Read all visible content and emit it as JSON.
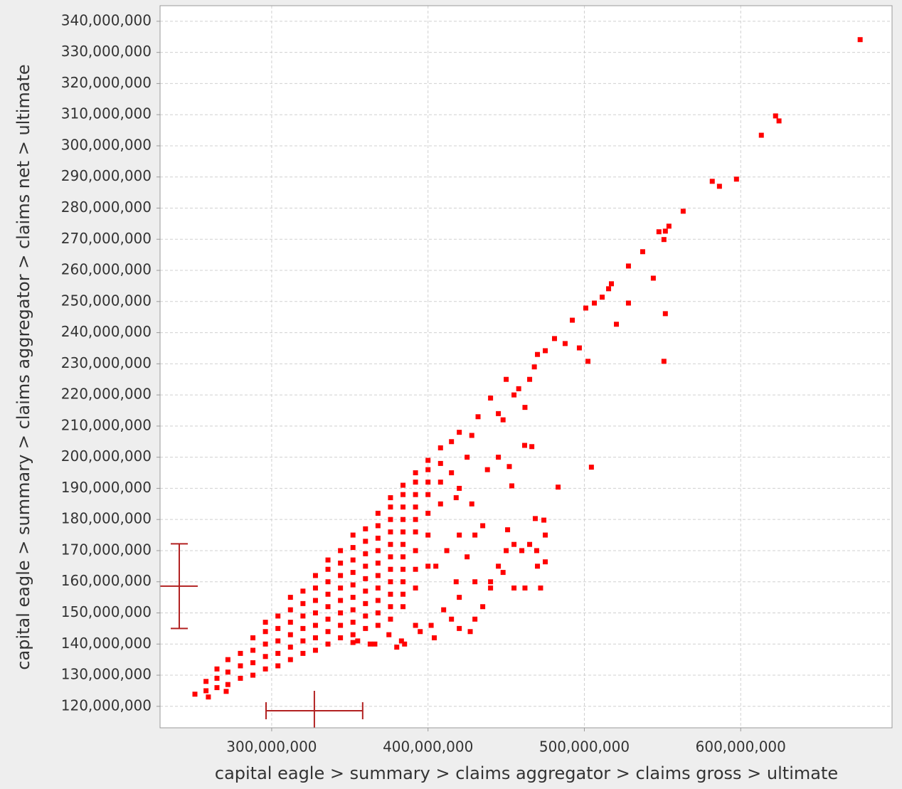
{
  "chart_data": {
    "type": "scatter",
    "x_label": "capital eagle > summary > claims aggregator > claims gross > ultimate",
    "y_label": "capital eagle > summary > claims aggregator > claims net > ultimate",
    "xlim": [
      228600000,
      696800000
    ],
    "ylim": [
      113100000,
      345000000
    ],
    "xticks": [
      {
        "value": 300000000,
        "label": "300,000,000"
      },
      {
        "value": 400000000,
        "label": "400,000,000"
      },
      {
        "value": 500000000,
        "label": "500,000,000"
      },
      {
        "value": 600000000,
        "label": "600,000,000"
      }
    ],
    "yticks": [
      {
        "value": 120000000,
        "label": "120,000,000"
      },
      {
        "value": 130000000,
        "label": "130,000,000"
      },
      {
        "value": 140000000,
        "label": "140,000,000"
      },
      {
        "value": 150000000,
        "label": "150,000,000"
      },
      {
        "value": 160000000,
        "label": "160,000,000"
      },
      {
        "value": 170000000,
        "label": "170,000,000"
      },
      {
        "value": 180000000,
        "label": "180,000,000"
      },
      {
        "value": 190000000,
        "label": "190,000,000"
      },
      {
        "value": 200000000,
        "label": "200,000,000"
      },
      {
        "value": 210000000,
        "label": "210,000,000"
      },
      {
        "value": 220000000,
        "label": "220,000,000"
      },
      {
        "value": 230000000,
        "label": "230,000,000"
      },
      {
        "value": 240000000,
        "label": "240,000,000"
      },
      {
        "value": 250000000,
        "label": "250,000,000"
      },
      {
        "value": 260000000,
        "label": "260,000,000"
      },
      {
        "value": 270000000,
        "label": "270,000,000"
      },
      {
        "value": 280000000,
        "label": "280,000,000"
      },
      {
        "value": 290000000,
        "label": "290,000,000"
      },
      {
        "value": 300000000,
        "label": "300,000,000"
      },
      {
        "value": 310000000,
        "label": "310,000,000"
      },
      {
        "value": 320000000,
        "label": "320,000,000"
      },
      {
        "value": 330000000,
        "label": "330,000,000"
      },
      {
        "value": 340000000,
        "label": "340,000,000"
      }
    ],
    "grid": true,
    "x_error": {
      "value": 327300000,
      "error": 30900000,
      "color": "#b22222"
    },
    "y_error": {
      "value": 158600000,
      "error": 13600000,
      "color": "#b22222"
    },
    "series": [
      {
        "color": "#ff0000",
        "x": [
          258000000,
          258000000,
          265000000,
          265000000,
          265000000,
          272000000,
          272000000,
          272000000,
          280000000,
          280000000,
          280000000,
          288000000,
          288000000,
          288000000,
          288000000,
          296000000,
          296000000,
          296000000,
          296000000,
          296000000,
          304000000,
          304000000,
          304000000,
          304000000,
          304000000,
          312000000,
          312000000,
          312000000,
          312000000,
          312000000,
          312000000,
          320000000,
          320000000,
          320000000,
          320000000,
          320000000,
          320000000,
          328000000,
          328000000,
          328000000,
          328000000,
          328000000,
          328000000,
          328000000,
          336000000,
          336000000,
          336000000,
          336000000,
          336000000,
          336000000,
          336000000,
          336000000,
          344000000,
          344000000,
          344000000,
          344000000,
          344000000,
          344000000,
          344000000,
          344000000,
          352000000,
          352000000,
          352000000,
          352000000,
          352000000,
          352000000,
          352000000,
          352000000,
          352000000,
          360000000,
          360000000,
          360000000,
          360000000,
          360000000,
          360000000,
          360000000,
          360000000,
          360000000,
          368000000,
          368000000,
          368000000,
          368000000,
          368000000,
          368000000,
          368000000,
          368000000,
          368000000,
          368000000,
          376000000,
          376000000,
          376000000,
          376000000,
          376000000,
          376000000,
          376000000,
          376000000,
          376000000,
          376000000,
          376000000,
          384000000,
          384000000,
          384000000,
          384000000,
          384000000,
          384000000,
          384000000,
          384000000,
          384000000,
          384000000,
          384000000,
          392000000,
          392000000,
          392000000,
          392000000,
          392000000,
          392000000,
          392000000,
          392000000,
          392000000,
          400000000,
          400000000,
          400000000,
          400000000,
          400000000,
          400000000,
          400000000,
          408000000,
          408000000,
          408000000,
          408000000,
          250900000,
          259500000,
          270900000,
          352000000,
          366000000,
          380000000,
          383000000,
          395000000,
          402000000,
          410000000,
          415000000,
          420000000,
          418000000,
          405000000,
          412000000,
          420000000,
          425000000,
          430000000,
          435000000,
          440000000,
          445000000,
          450000000,
          455000000,
          460000000,
          465000000,
          430000000,
          435000000,
          428000000,
          418000000,
          420000000,
          425000000,
          415000000,
          415000000,
          420000000,
          428000000,
          432000000,
          440000000,
          445000000,
          450000000,
          455000000,
          458000000,
          465000000,
          468000000,
          470000000,
          448000000,
          462000000,
          445000000,
          438000000,
          452000000,
          475000000,
          470000000,
          472000000,
          462000000,
          455000000,
          448000000,
          440000000,
          430000000,
          427000000,
          420000000,
          404000000,
          392000000,
          385000000,
          375000000,
          363000000,
          355000000,
          676400000,
          622300000,
          624500000,
          613200000,
          597300000,
          581800000,
          586400000,
          563200000,
          554100000,
          551800000,
          547700000,
          550900000,
          537300000,
          528200000,
          544100000,
          517300000,
          515500000,
          551800000,
          528200000,
          511400000,
          506400000,
          500900000,
          520500000,
          492300000,
          496800000,
          502300000,
          550900000,
          504500000,
          483200000,
          487700000,
          480900000,
          475000000,
          474100000,
          468600000,
          475000000,
          469500000,
          450900000,
          453600000,
          461800000,
          466400000
        ],
        "values": [
          125000000,
          128000000,
          126000000,
          129000000,
          132000000,
          127000000,
          131000000,
          135000000,
          129000000,
          133000000,
          137000000,
          130000000,
          134000000,
          138000000,
          142000000,
          132000000,
          136000000,
          140000000,
          144000000,
          147000000,
          133000000,
          137000000,
          141000000,
          145000000,
          149000000,
          135000000,
          139000000,
          143000000,
          147000000,
          151000000,
          155000000,
          137000000,
          141000000,
          145000000,
          149000000,
          153000000,
          157000000,
          138000000,
          142000000,
          146000000,
          150000000,
          154000000,
          158000000,
          162000000,
          140000000,
          144000000,
          148000000,
          152000000,
          156000000,
          160000000,
          164000000,
          167000000,
          142000000,
          146000000,
          150000000,
          154000000,
          158000000,
          162000000,
          166000000,
          170000000,
          143000000,
          147000000,
          151000000,
          155000000,
          159000000,
          163000000,
          167000000,
          171000000,
          175000000,
          145000000,
          149000000,
          153000000,
          157000000,
          161000000,
          165000000,
          169000000,
          173000000,
          177000000,
          146000000,
          150000000,
          154000000,
          158000000,
          162000000,
          166000000,
          170000000,
          174000000,
          178000000,
          182000000,
          148000000,
          152000000,
          156000000,
          160000000,
          164000000,
          168000000,
          172000000,
          176000000,
          180000000,
          184000000,
          187000000,
          152000000,
          156000000,
          160000000,
          164000000,
          168000000,
          172000000,
          176000000,
          180000000,
          184000000,
          188000000,
          191000000,
          158000000,
          164000000,
          170000000,
          176000000,
          180000000,
          184000000,
          188000000,
          192000000,
          195000000,
          165000000,
          175000000,
          182000000,
          188000000,
          192000000,
          196000000,
          199000000,
          185000000,
          192000000,
          198000000,
          203000000,
          123900000,
          123000000,
          124800000,
          140500000,
          140000000,
          139000000,
          141000000,
          144000000,
          146000000,
          151000000,
          148000000,
          155000000,
          160000000,
          165000000,
          170000000,
          175000000,
          168000000,
          160000000,
          152000000,
          160000000,
          165000000,
          170000000,
          172000000,
          170000000,
          172000000,
          175000000,
          178000000,
          185000000,
          187000000,
          190000000,
          200000000,
          195000000,
          205000000,
          208000000,
          207000000,
          213000000,
          219000000,
          214000000,
          225000000,
          220000000,
          222000000,
          225000000,
          229000000,
          233000000,
          212000000,
          216000000,
          200000000,
          196000000,
          197000000,
          175000000,
          165000000,
          158000000,
          158000000,
          158000000,
          163000000,
          158000000,
          148000000,
          144000000,
          145000000,
          142000000,
          146000000,
          140000000,
          143000000,
          140000000,
          141000000,
          334100000,
          309600000,
          308000000,
          303400000,
          289300000,
          288600000,
          287000000,
          279000000,
          274200000,
          272600000,
          272400000,
          269900000,
          266000000,
          261400000,
          257500000,
          255700000,
          254100000,
          246100000,
          249500000,
          251400000,
          249500000,
          247900000,
          242700000,
          244000000,
          235100000,
          230800000,
          230800000,
          196800000,
          190400000,
          236500000,
          238100000,
          234200000,
          179800000,
          180300000,
          166400000,
          170000000,
          176700000,
          190800000,
          203800000,
          203400000
        ]
      }
    ]
  }
}
